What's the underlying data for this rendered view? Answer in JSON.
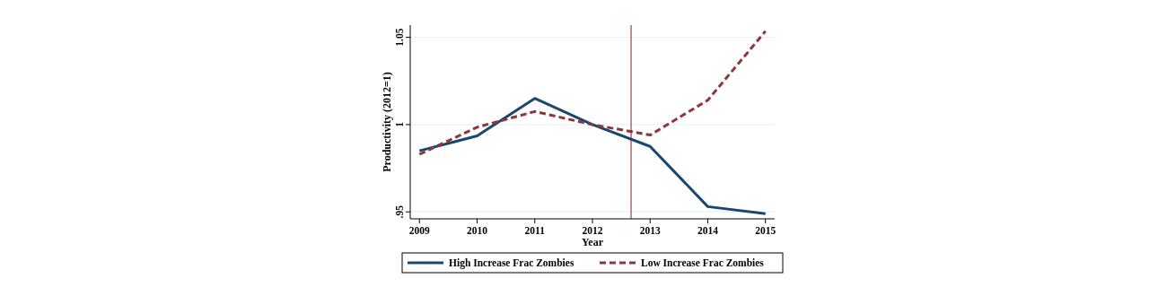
{
  "chart_data": {
    "type": "line",
    "xlabel": "Year",
    "ylabel": "Productivity (2012=1)",
    "x": [
      2009,
      2010,
      2011,
      2012,
      2013,
      2014,
      2015
    ],
    "series": [
      {
        "name": "High Increase Frac Zombies",
        "color": "#1a476f",
        "values": [
          0.985,
          0.9935,
          1.015,
          1.0,
          0.9875,
          0.953,
          0.949
        ],
        "line_style": "solid"
      },
      {
        "name": "Low Increase Frac Zombies",
        "color": "#90353b",
        "values": [
          0.983,
          0.9985,
          1.0075,
          1.0,
          0.994,
          1.014,
          1.0535
        ],
        "line_style": "dashed"
      }
    ],
    "xlim": [
      2008.84,
      2015.16
    ],
    "xticks": [
      2009,
      2010,
      2011,
      2012,
      2013,
      2014,
      2015
    ],
    "ylim": [
      0.946,
      1.057
    ],
    "yticks": [
      {
        "value": 0.95,
        "label": ".95"
      },
      1,
      1.05
    ],
    "ref_lines": [
      {
        "axis": "x",
        "value": 2012.67,
        "color": "#8b1a2b"
      }
    ],
    "grid": "y",
    "legend": "bottom",
    "marker": "none"
  }
}
